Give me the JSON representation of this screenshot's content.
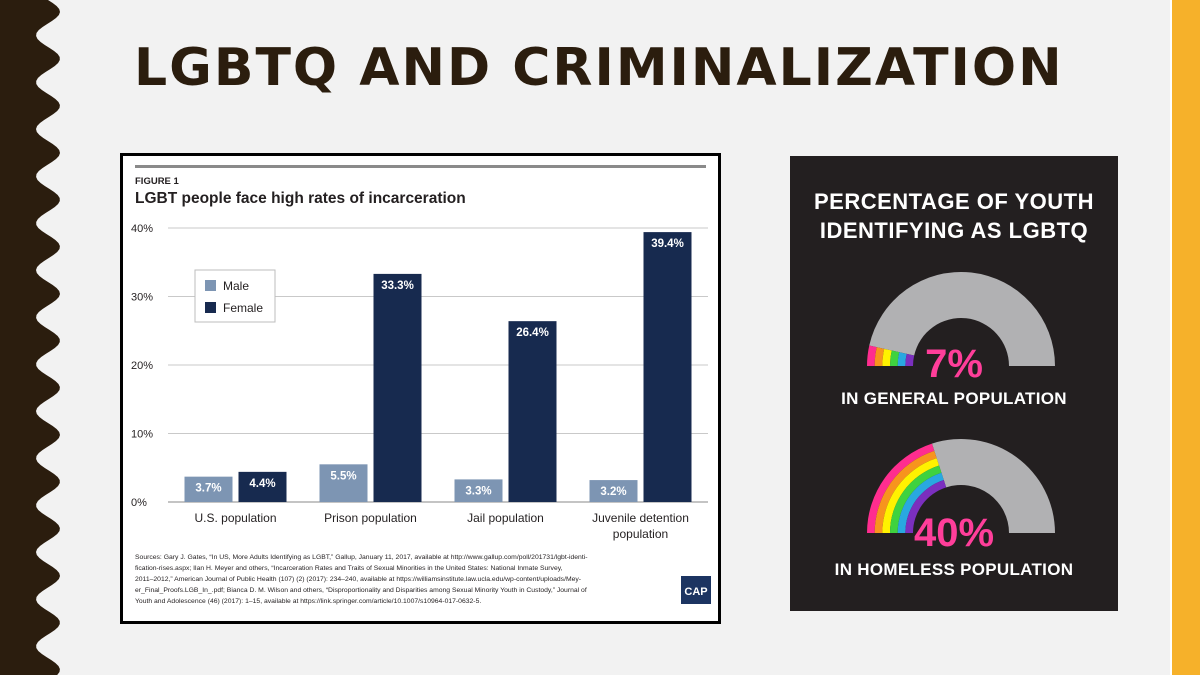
{
  "slide": {
    "title": "LGBTQ AND CRIMINALIZATION",
    "colors": {
      "background": "#f2f2f2",
      "wave": "#2b1d0e",
      "accent_bar": "#f6b12a"
    }
  },
  "figure": {
    "label": "FIGURE 1",
    "sources_lines": [
      "Sources: Gary J. Gates, “In US, More Adults Identifying as LGBT,” Gallup, January 11, 2017, available at http://www.gallup.com/poll/201731/lgbt-identi-",
      "fication-rises.aspx; Ilan H. Meyer and others, “Incarceration Rates and Traits of Sexual Minorities in the United States: National Inmate Survey,",
      "2011–2012,” American Journal of Public Health (107) (2) (2017): 234–240, available at https://williamsinstitute.law.ucla.edu/wp-content/uploads/Mey-",
      "er_Final_Proofs.LGB_In_.pdf; Bianca D. M. Wilson and others, “Disproportionality and Disparities among Sexual Minority Youth in Custody,” Journal of",
      "Youth and Adolescence (46) (2017): 1–15, available at https://link.springer.com/article/10.1007/s10964-017-0632-5."
    ],
    "logo_text": "CAP"
  },
  "chart_data": [
    {
      "type": "bar",
      "title": "LGBT people face high rates of incarceration",
      "categories": [
        "U.S. population",
        "Prison population",
        "Jail population",
        "Juvenile detention population"
      ],
      "category_lines": [
        [
          "U.S. population"
        ],
        [
          "Prison population"
        ],
        [
          "Jail population"
        ],
        [
          "Juvenile detention",
          "population"
        ]
      ],
      "series": [
        {
          "name": "Male",
          "values": [
            3.7,
            5.5,
            3.3,
            3.2
          ],
          "labels": [
            "3.7%",
            "5.5%",
            "3.3%",
            "3.2%"
          ],
          "color": "#7d95b3"
        },
        {
          "name": "Female",
          "values": [
            4.4,
            33.3,
            26.4,
            39.4
          ],
          "labels": [
            "4.4%",
            "33.3%",
            "26.4%",
            "39.4%"
          ],
          "color": "#172a4f"
        }
      ],
      "yticks": [
        0,
        10,
        20,
        30,
        40
      ],
      "ytick_labels": [
        "0%",
        "10%",
        "20%",
        "30%",
        "40%"
      ],
      "ylim": [
        0,
        40
      ],
      "xlabel": "",
      "ylabel": "",
      "grid": true,
      "legend": "top-left"
    },
    {
      "type": "gauge",
      "title": "PERCENTAGE OF YOUTH IDENTIFYING AS LGBTQ",
      "items": [
        {
          "value": 7,
          "display": "7%",
          "label": "IN GENERAL POPULATION"
        },
        {
          "value": 40,
          "display": "40%",
          "label": "IN HOMELESS POPULATION"
        }
      ],
      "rainbow": [
        "#ff2d8f",
        "#f7941d",
        "#fff200",
        "#3fd23f",
        "#29a8e0",
        "#7b2fbe"
      ],
      "track_color": "#b1b1b3",
      "background": "#231f20"
    }
  ]
}
